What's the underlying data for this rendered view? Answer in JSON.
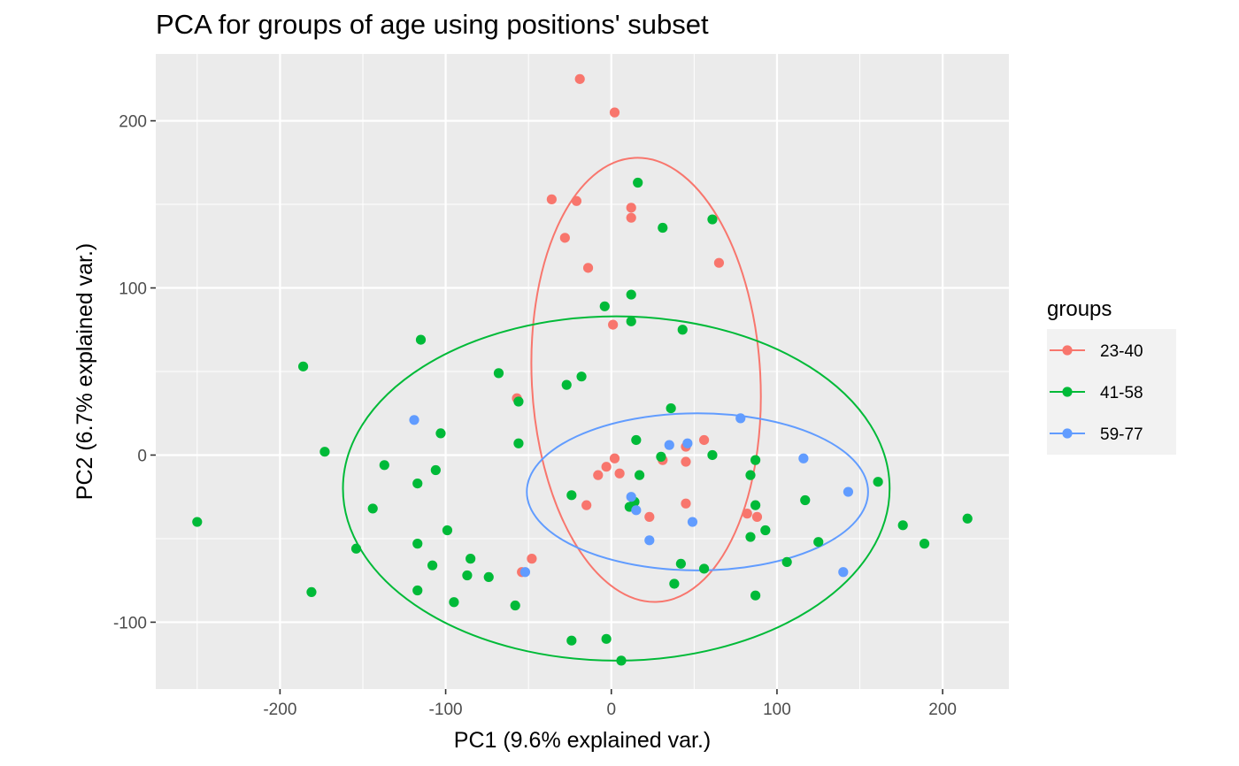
{
  "chart_data": {
    "type": "scatter",
    "title": "PCA for groups of age using positions' subset",
    "xlabel": "PC1 (9.6% explained var.)",
    "ylabel": "PC2 (6.7% explained var.)",
    "xlim": [
      -275,
      240
    ],
    "ylim": [
      -140,
      240
    ],
    "x_ticks": [
      -200,
      -100,
      0,
      100,
      200
    ],
    "x_tick_labels": [
      "-200",
      "-100",
      "0",
      "100",
      "200"
    ],
    "y_ticks": [
      -100,
      0,
      100,
      200
    ],
    "y_tick_labels": [
      "-100",
      "0",
      "100",
      "200"
    ],
    "grid": true,
    "legend": {
      "title": "groups",
      "placement": "right"
    },
    "series": [
      {
        "name": "23-40",
        "color": "#F8766D",
        "points": [
          [
            -19,
            225
          ],
          [
            2,
            205
          ],
          [
            -36,
            153
          ],
          [
            -21,
            152
          ],
          [
            12,
            148
          ],
          [
            12,
            142
          ],
          [
            -28,
            130
          ],
          [
            -14,
            112
          ],
          [
            65,
            115
          ],
          [
            1,
            78
          ],
          [
            -57,
            34
          ],
          [
            56,
            9
          ],
          [
            45,
            5
          ],
          [
            2,
            -2
          ],
          [
            -3,
            -7
          ],
          [
            5,
            -11
          ],
          [
            -8,
            -12
          ],
          [
            45,
            -4
          ],
          [
            31,
            -3
          ],
          [
            -15,
            -30
          ],
          [
            23,
            -37
          ],
          [
            45,
            -29
          ],
          [
            82,
            -35
          ],
          [
            88,
            -37
          ],
          [
            -48,
            -62
          ],
          [
            -54,
            -70
          ]
        ],
        "ellipse": {
          "cx": 21,
          "cy": 45,
          "rx": 69,
          "ry": 133,
          "angle": -3
        }
      },
      {
        "name": "41-58",
        "color": "#00BA38",
        "points": [
          [
            16,
            163
          ],
          [
            61,
            141
          ],
          [
            31,
            136
          ],
          [
            12,
            96
          ],
          [
            -4,
            89
          ],
          [
            12,
            80
          ],
          [
            43,
            75
          ],
          [
            -115,
            69
          ],
          [
            -186,
            53
          ],
          [
            -68,
            49
          ],
          [
            -18,
            47
          ],
          [
            -27,
            42
          ],
          [
            -56,
            32
          ],
          [
            36,
            28
          ],
          [
            -103,
            13
          ],
          [
            15,
            9
          ],
          [
            -56,
            7
          ],
          [
            -173,
            2
          ],
          [
            61,
            0
          ],
          [
            30,
            -1
          ],
          [
            87,
            -3
          ],
          [
            -137,
            -6
          ],
          [
            -106,
            -9
          ],
          [
            17,
            -12
          ],
          [
            84,
            -12
          ],
          [
            -117,
            -17
          ],
          [
            161,
            -16
          ],
          [
            -24,
            -24
          ],
          [
            14,
            -28
          ],
          [
            11,
            -31
          ],
          [
            87,
            -30
          ],
          [
            117,
            -27
          ],
          [
            -144,
            -32
          ],
          [
            -99,
            -45
          ],
          [
            93,
            -45
          ],
          [
            176,
            -42
          ],
          [
            -250,
            -40
          ],
          [
            215,
            -38
          ],
          [
            84,
            -49
          ],
          [
            125,
            -52
          ],
          [
            189,
            -53
          ],
          [
            -117,
            -53
          ],
          [
            -154,
            -56
          ],
          [
            -85,
            -62
          ],
          [
            42,
            -65
          ],
          [
            -108,
            -66
          ],
          [
            106,
            -64
          ],
          [
            56,
            -68
          ],
          [
            -87,
            -72
          ],
          [
            -74,
            -73
          ],
          [
            38,
            -77
          ],
          [
            -117,
            -81
          ],
          [
            -181,
            -82
          ],
          [
            87,
            -84
          ],
          [
            -95,
            -88
          ],
          [
            -58,
            -90
          ],
          [
            -24,
            -111
          ],
          [
            -3,
            -110
          ],
          [
            6,
            -123
          ]
        ],
        "ellipse": {
          "cx": 3,
          "cy": -20,
          "rx": 165,
          "ry": 103,
          "angle": 0
        }
      },
      {
        "name": "59-77",
        "color": "#619CFF",
        "points": [
          [
            -119,
            21
          ],
          [
            78,
            22
          ],
          [
            35,
            6
          ],
          [
            46,
            7
          ],
          [
            116,
            -2
          ],
          [
            143,
            -22
          ],
          [
            12,
            -25
          ],
          [
            15,
            -33
          ],
          [
            49,
            -40
          ],
          [
            23,
            -51
          ],
          [
            -52,
            -70
          ],
          [
            140,
            -70
          ]
        ],
        "ellipse": {
          "cx": 52,
          "cy": -22,
          "rx": 103,
          "ry": 47,
          "angle": 0
        }
      }
    ]
  }
}
